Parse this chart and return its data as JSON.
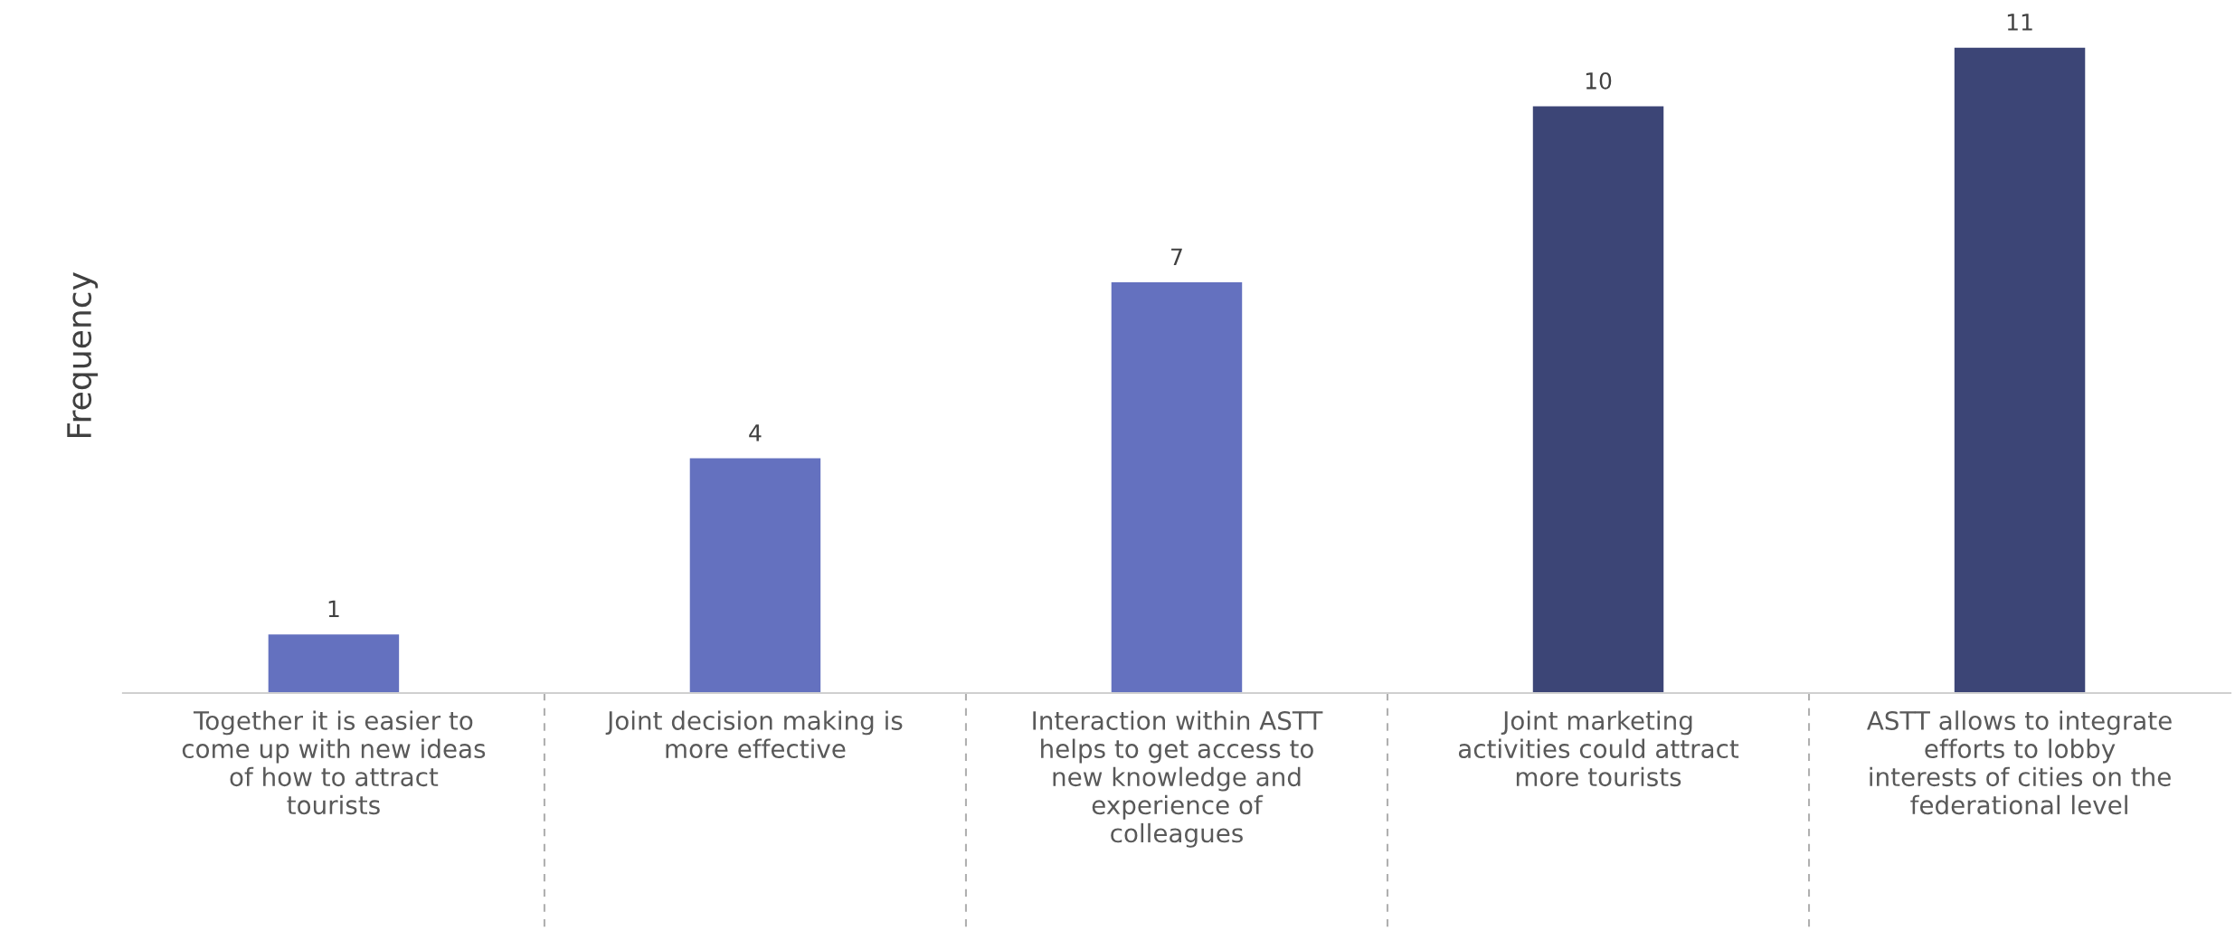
{
  "chart_data": {
    "type": "bar",
    "ylabel": "Frequency",
    "categories": [
      "Together it is easier to\ncome up with new ideas\nof how to attract\ntourists",
      "Joint decision making is\nmore effective",
      "Interaction within ASTT\nhelps to get access to\nnew knowledge and\nexperience of\ncolleagues",
      "Joint marketing\nactivities could attract\nmore tourists",
      "ASTT allows to integrate\nefforts to lobby\ninterests of cities on the\nfederational level"
    ],
    "values": [
      1,
      4,
      7,
      10,
      11
    ],
    "colors": [
      "#6471bf",
      "#6471bf",
      "#6471bf",
      "#3c4576",
      "#3c4576"
    ],
    "data_labels": true,
    "grid": false,
    "legend": false,
    "tick_labels": "x"
  }
}
